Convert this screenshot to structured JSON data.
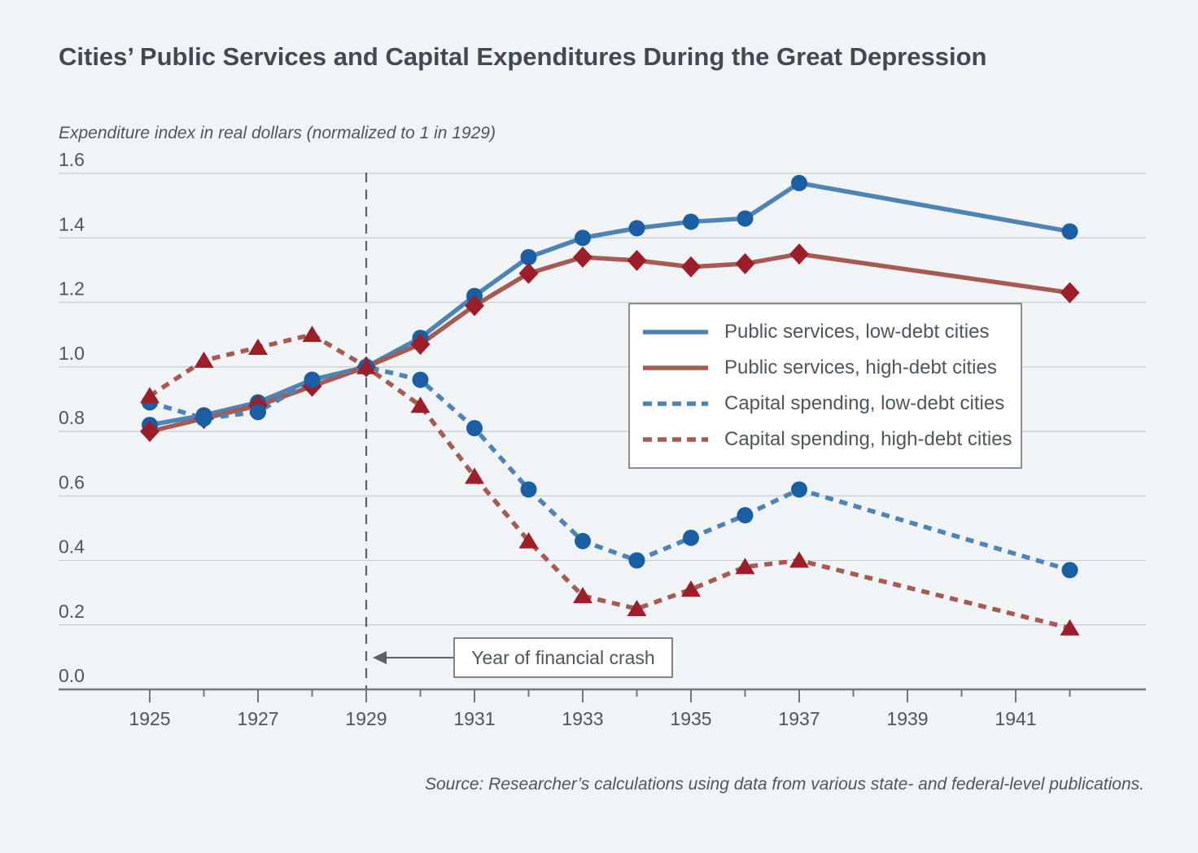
{
  "header": {
    "title": "Cities’ Public Services and Capital Expenditures During the Great Depression",
    "axis_note": "Expenditure index in real dollars (normalized to 1 in 1929)"
  },
  "chart_data": {
    "type": "line",
    "title": "Cities’ Public Services and Capital Expenditures During the Great Depression",
    "ylabel": "Expenditure index in real dollars (normalized to 1 in 1929)",
    "xlabel": "",
    "grid": true,
    "legend_position": "middle-right",
    "x": [
      1925,
      1926,
      1927,
      1928,
      1929,
      1930,
      1931,
      1932,
      1933,
      1934,
      1935,
      1936,
      1937,
      1942
    ],
    "x_axis": {
      "tick_years": [
        1925,
        1926,
        1927,
        1928,
        1929,
        1930,
        1931,
        1932,
        1933,
        1934,
        1935,
        1936,
        1937,
        1938,
        1939,
        1940,
        1941,
        1942
      ],
      "label_years": [
        1925,
        1927,
        1929,
        1931,
        1933,
        1935,
        1937,
        1939,
        1941
      ]
    },
    "y_axis": {
      "min": 0.0,
      "max": 1.6,
      "step": 0.2
    },
    "series": [
      {
        "name": "Public services, low-debt cities",
        "style": "solid",
        "marker": "circle",
        "color": "#4d83b5",
        "marker_color": "#1a5fa3",
        "values": [
          0.82,
          0.85,
          0.89,
          0.96,
          1.0,
          1.09,
          1.22,
          1.34,
          1.4,
          1.43,
          1.45,
          1.46,
          1.57,
          1.42
        ]
      },
      {
        "name": "Public services, high-debt cities",
        "style": "solid",
        "marker": "diamond",
        "color": "#a75a51",
        "marker_color": "#9d1e28",
        "values": [
          0.8,
          0.84,
          0.88,
          0.94,
          1.0,
          1.07,
          1.19,
          1.29,
          1.34,
          1.33,
          1.31,
          1.32,
          1.35,
          1.23
        ]
      },
      {
        "name": "Capital spending, low-debt cities",
        "style": "dashed",
        "marker": "circle",
        "color": "#4d83b5",
        "marker_color": "#1a5fa3",
        "values": [
          0.89,
          0.84,
          0.86,
          0.96,
          1.0,
          0.96,
          0.81,
          0.62,
          0.46,
          0.4,
          0.47,
          0.54,
          0.62,
          0.37
        ]
      },
      {
        "name": "Capital spending, high-debt cities",
        "style": "dashed",
        "marker": "triangle",
        "color": "#a75a51",
        "marker_color": "#9d1e28",
        "values": [
          0.91,
          1.02,
          1.06,
          1.1,
          1.0,
          0.88,
          0.66,
          0.46,
          0.29,
          0.25,
          0.31,
          0.38,
          0.4,
          0.19
        ]
      }
    ],
    "annotations": {
      "crash_line_year": 1929,
      "crash_label": "Year of financial crash"
    }
  },
  "colors": {
    "background": "#f0f4f7",
    "gridline": "#c9ced4",
    "axis": "#70787f",
    "dashed_reference_line": "#5a6167",
    "text": "#4d565e"
  },
  "footer": {
    "source": "Source: Researcher’s calculations using data from various state- and federal-level publications."
  }
}
